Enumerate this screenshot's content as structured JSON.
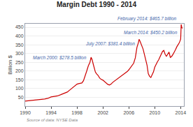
{
  "chart_data": {
    "type": "line",
    "title": "Margin Debt 1990 - 2014",
    "ylabel": "Billion $",
    "source": "Source of data: NYSE Data",
    "color": "#cc0000",
    "grid": true,
    "xlim": [
      1990,
      2014.5
    ],
    "xticks": [
      1990,
      1994,
      1998,
      2002,
      2006,
      2010,
      2014
    ],
    "ylim": [
      0,
      470
    ],
    "yticks": [
      50,
      100,
      150,
      200,
      250,
      300,
      350,
      400,
      450
    ],
    "x": [
      1990.0,
      1990.5,
      1991.0,
      1991.5,
      1992.0,
      1992.5,
      1993.0,
      1993.5,
      1994.0,
      1994.5,
      1995.0,
      1995.5,
      1996.0,
      1996.5,
      1997.0,
      1997.5,
      1998.0,
      1998.25,
      1998.5,
      1998.75,
      1999.0,
      1999.25,
      1999.5,
      1999.75,
      2000.0,
      2000.17,
      2000.33,
      2000.5,
      2000.67,
      2000.83,
      2001.0,
      2001.25,
      2001.5,
      2001.75,
      2002.0,
      2002.25,
      2002.5,
      2002.75,
      2003.0,
      2003.25,
      2003.5,
      2003.75,
      2004.0,
      2004.25,
      2004.5,
      2004.75,
      2005.0,
      2005.25,
      2005.5,
      2005.75,
      2006.0,
      2006.25,
      2006.5,
      2006.75,
      2007.0,
      2007.25,
      2007.5,
      2007.58,
      2007.7,
      2007.85,
      2008.0,
      2008.2,
      2008.4,
      2008.6,
      2008.8,
      2009.0,
      2009.2,
      2009.4,
      2009.6,
      2009.8,
      2010.0,
      2010.2,
      2010.4,
      2010.6,
      2010.8,
      2011.0,
      2011.2,
      2011.4,
      2011.6,
      2011.8,
      2012.0,
      2012.2,
      2012.4,
      2012.6,
      2012.8,
      2013.0,
      2013.2,
      2013.4,
      2013.6,
      2013.8,
      2014.0,
      2014.08,
      2014.17,
      2014.25
    ],
    "values": [
      28,
      30,
      32,
      33,
      36,
      38,
      40,
      44,
      52,
      55,
      58,
      65,
      72,
      80,
      95,
      110,
      125,
      128,
      130,
      132,
      145,
      170,
      200,
      230,
      250,
      278.5,
      265,
      240,
      215,
      195,
      185,
      175,
      160,
      152,
      148,
      140,
      132,
      124,
      120,
      125,
      135,
      142,
      148,
      155,
      162,
      168,
      175,
      182,
      188,
      197,
      207,
      220,
      232,
      245,
      275,
      335,
      365,
      381.4,
      372,
      358,
      345,
      325,
      295,
      268,
      235,
      185,
      170,
      163,
      178,
      195,
      222,
      240,
      252,
      264,
      278,
      292,
      312,
      318,
      296,
      284,
      298,
      308,
      278,
      283,
      294,
      306,
      322,
      338,
      348,
      362,
      382,
      465.7,
      450.2,
      443
    ],
    "annotations": [
      {
        "text": "March 2000: $278.5 billion",
        "x": 2000.17,
        "y": 278.5
      },
      {
        "text": "July 2007: $381.4 billion",
        "x": 2007.58,
        "y": 381.4
      },
      {
        "text": "February 2014: $465.7 billion",
        "x": 2014.08,
        "y": 465.7
      },
      {
        "text": "March 2014: $450.2 billion",
        "x": 2014.17,
        "y": 450.2
      }
    ]
  }
}
